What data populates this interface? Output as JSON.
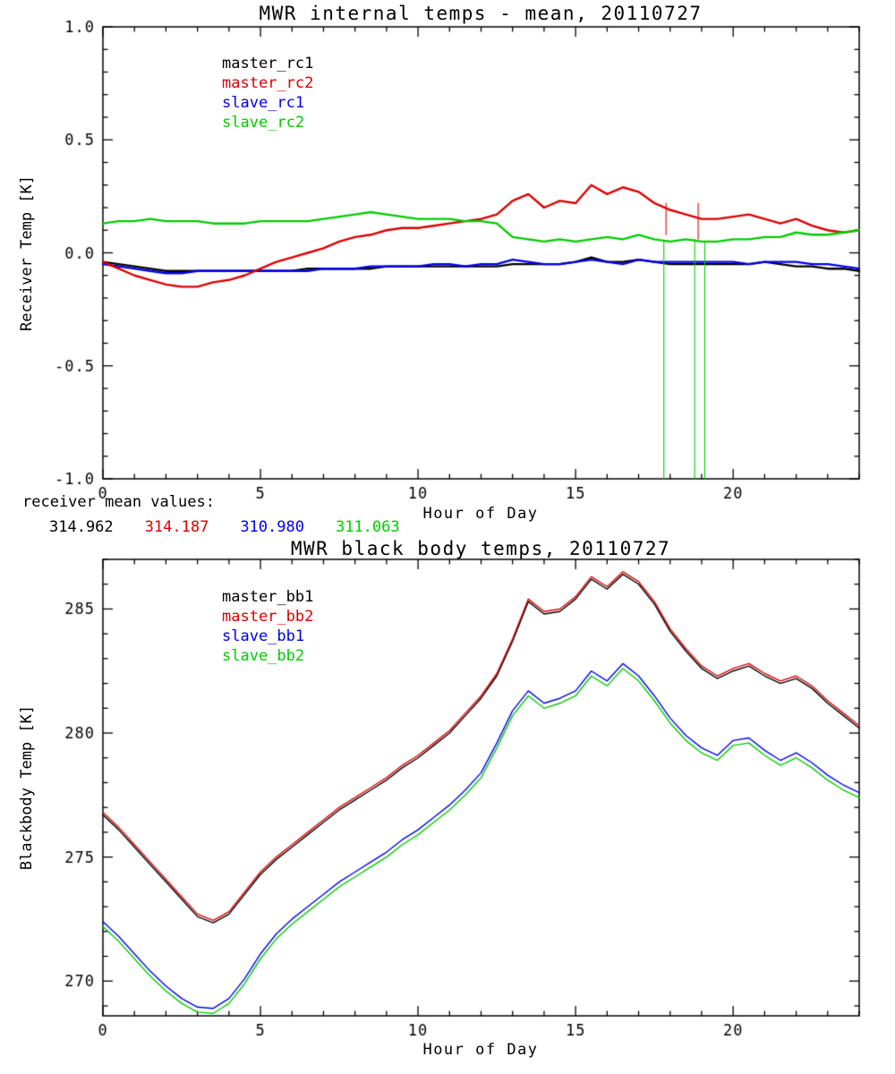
{
  "figure": {
    "background": "#ffffff"
  },
  "receiver_means": {
    "label": "receiver mean values:",
    "values": [
      {
        "text": "314.962",
        "color": "#000000"
      },
      {
        "text": "314.187",
        "color": "#dd0000"
      },
      {
        "text": "310.980",
        "color": "#0000ee"
      },
      {
        "text": "311.063",
        "color": "#00cc00"
      }
    ]
  },
  "chart_data": [
    {
      "type": "line",
      "title": "MWR internal temps - mean, 20110727",
      "xlabel": "Hour of Day",
      "ylabel": "Receiver Temp [K]",
      "xlim": [
        0,
        24
      ],
      "ylim": [
        -1.0,
        1.0
      ],
      "grid": false,
      "legend_position": "upper-left-inside",
      "xticks": {
        "values": [
          0,
          5,
          10,
          15,
          20
        ],
        "labels": [
          "0",
          "5",
          "10",
          "15",
          "20"
        ],
        "minor_step": 1
      },
      "yticks": {
        "values": [
          -1.0,
          -0.5,
          0.0,
          0.5,
          1.0
        ],
        "labels": [
          "-1.0",
          "-0.5",
          "0.0",
          "0.5",
          "1.0"
        ],
        "minor_step": 0.1
      },
      "x": [
        0,
        0.5,
        1,
        1.5,
        2,
        2.5,
        3,
        3.5,
        4,
        4.5,
        5,
        5.5,
        6,
        6.5,
        7,
        7.5,
        8,
        8.5,
        9,
        9.5,
        10,
        10.5,
        11,
        11.5,
        12,
        12.5,
        13,
        13.5,
        14,
        14.5,
        15,
        15.5,
        16,
        16.5,
        17,
        17.5,
        18,
        18.5,
        19,
        19.5,
        20,
        20.5,
        21,
        21.5,
        22,
        22.5,
        23,
        23.5,
        24
      ],
      "series": [
        {
          "name": "master_rc1",
          "color": "#000000",
          "z": 1,
          "values": [
            -0.04,
            -0.05,
            -0.06,
            -0.07,
            -0.08,
            -0.08,
            -0.08,
            -0.08,
            -0.08,
            -0.08,
            -0.08,
            -0.08,
            -0.08,
            -0.07,
            -0.07,
            -0.07,
            -0.07,
            -0.07,
            -0.06,
            -0.06,
            -0.06,
            -0.06,
            -0.06,
            -0.06,
            -0.06,
            -0.06,
            -0.05,
            -0.05,
            -0.05,
            -0.05,
            -0.04,
            -0.02,
            -0.04,
            -0.04,
            -0.03,
            -0.04,
            -0.05,
            -0.05,
            -0.05,
            -0.05,
            -0.05,
            -0.05,
            -0.04,
            -0.05,
            -0.06,
            -0.06,
            -0.07,
            -0.07,
            -0.08
          ]
        },
        {
          "name": "master_rc2",
          "color": "#dd0000",
          "z": 3,
          "values": [
            -0.04,
            -0.07,
            -0.1,
            -0.12,
            -0.14,
            -0.15,
            -0.15,
            -0.13,
            -0.12,
            -0.1,
            -0.07,
            -0.04,
            -0.02,
            0.0,
            0.02,
            0.05,
            0.07,
            0.08,
            0.1,
            0.11,
            0.11,
            0.12,
            0.13,
            0.14,
            0.15,
            0.17,
            0.23,
            0.26,
            0.2,
            0.23,
            0.22,
            0.3,
            0.26,
            0.29,
            0.27,
            0.22,
            0.19,
            0.17,
            0.15,
            0.15,
            0.16,
            0.17,
            0.15,
            0.13,
            0.15,
            0.12,
            0.1,
            0.09,
            0.1
          ]
        },
        {
          "name": "slave_rc1",
          "color": "#0000ee",
          "z": 2,
          "values": [
            -0.05,
            -0.06,
            -0.07,
            -0.08,
            -0.09,
            -0.09,
            -0.08,
            -0.08,
            -0.08,
            -0.08,
            -0.08,
            -0.08,
            -0.08,
            -0.08,
            -0.07,
            -0.07,
            -0.07,
            -0.06,
            -0.06,
            -0.06,
            -0.06,
            -0.05,
            -0.05,
            -0.06,
            -0.05,
            -0.05,
            -0.03,
            -0.04,
            -0.05,
            -0.05,
            -0.04,
            -0.03,
            -0.04,
            -0.05,
            -0.03,
            -0.04,
            -0.04,
            -0.04,
            -0.04,
            -0.04,
            -0.04,
            -0.05,
            -0.04,
            -0.04,
            -0.04,
            -0.05,
            -0.05,
            -0.06,
            -0.07
          ]
        },
        {
          "name": "slave_rc2",
          "color": "#00cc00",
          "z": 4,
          "values": [
            0.13,
            0.14,
            0.14,
            0.15,
            0.14,
            0.14,
            0.14,
            0.13,
            0.13,
            0.13,
            0.14,
            0.14,
            0.14,
            0.14,
            0.15,
            0.16,
            0.17,
            0.18,
            0.17,
            0.16,
            0.15,
            0.15,
            0.15,
            0.14,
            0.14,
            0.13,
            0.07,
            0.06,
            0.05,
            0.06,
            0.05,
            0.06,
            0.07,
            0.06,
            0.08,
            0.06,
            0.05,
            0.06,
            0.05,
            0.05,
            0.06,
            0.06,
            0.07,
            0.07,
            0.09,
            0.08,
            0.08,
            0.09,
            0.1
          ]
        }
      ],
      "spikes": [
        {
          "color": "#00cc00",
          "x": 17.8,
          "y_from": 0.05,
          "y_to": -1.0
        },
        {
          "color": "#00cc00",
          "x": 18.78,
          "y_from": 0.06,
          "y_to": -1.0
        },
        {
          "color": "#00cc00",
          "x": 19.1,
          "y_from": 0.05,
          "y_to": -1.0
        },
        {
          "color": "#dd0000",
          "x": 17.87,
          "y_from": 0.22,
          "y_to": 0.08
        },
        {
          "color": "#dd0000",
          "x": 18.89,
          "y_from": 0.22,
          "y_to": 0.06
        }
      ]
    },
    {
      "type": "line",
      "title": "MWR black body temps, 20110727",
      "xlabel": "Hour of Day",
      "ylabel": "Blackbody Temp [K]",
      "xlim": [
        0,
        24
      ],
      "ylim": [
        268.6,
        287.0
      ],
      "grid": false,
      "legend_position": "upper-left-inside",
      "xticks": {
        "values": [
          0,
          5,
          10,
          15,
          20
        ],
        "labels": [
          "0",
          "5",
          "10",
          "15",
          "20"
        ],
        "minor_step": 1
      },
      "yticks": {
        "values": [
          270,
          275,
          280,
          285
        ],
        "labels": [
          "270",
          "275",
          "280",
          "285"
        ],
        "minor_step": 1
      },
      "x": [
        0,
        0.5,
        1,
        1.5,
        2,
        2.5,
        3,
        3.5,
        4,
        4.5,
        5,
        5.5,
        6,
        6.5,
        7,
        7.5,
        8,
        8.5,
        9,
        9.5,
        10,
        10.5,
        11,
        11.5,
        12,
        12.5,
        13,
        13.5,
        14,
        14.5,
        15,
        15.5,
        16,
        16.5,
        17,
        17.5,
        18,
        18.5,
        19,
        19.5,
        20,
        20.5,
        21,
        21.5,
        22,
        22.5,
        23,
        23.5,
        24
      ],
      "series": [
        {
          "name": "master_bb1",
          "color": "#000000",
          "z": 1,
          "values": [
            276.7,
            276.1,
            275.4,
            274.7,
            274.0,
            273.3,
            272.6,
            272.35,
            272.7,
            273.5,
            274.3,
            274.9,
            275.4,
            275.9,
            276.4,
            276.9,
            277.3,
            277.7,
            278.1,
            278.6,
            279.0,
            279.5,
            280.0,
            280.7,
            281.4,
            282.3,
            283.7,
            285.3,
            284.8,
            284.9,
            285.4,
            286.2,
            285.8,
            286.4,
            286.0,
            285.2,
            284.1,
            283.3,
            282.6,
            282.2,
            282.5,
            282.7,
            282.3,
            282.0,
            282.2,
            281.8,
            281.2,
            280.7,
            280.2
          ]
        },
        {
          "name": "master_bb2",
          "color": "#dd0000",
          "z": 2,
          "values": [
            276.8,
            276.2,
            275.5,
            274.8,
            274.1,
            273.4,
            272.7,
            272.45,
            272.8,
            273.6,
            274.4,
            275.0,
            275.5,
            276.0,
            276.5,
            277.0,
            277.4,
            277.8,
            278.2,
            278.7,
            279.1,
            279.6,
            280.1,
            280.8,
            281.5,
            282.4,
            283.8,
            285.4,
            284.9,
            285.0,
            285.5,
            286.3,
            285.9,
            286.5,
            286.1,
            285.3,
            284.2,
            283.4,
            282.7,
            282.3,
            282.6,
            282.8,
            282.4,
            282.1,
            282.3,
            281.9,
            281.3,
            280.8,
            280.3
          ]
        },
        {
          "name": "slave_bb1",
          "color": "#0000ee",
          "z": 3,
          "values": [
            272.4,
            271.8,
            271.1,
            270.4,
            269.8,
            269.3,
            268.95,
            268.9,
            269.3,
            270.1,
            271.1,
            271.9,
            272.5,
            273.0,
            273.5,
            274.0,
            274.4,
            274.8,
            275.2,
            275.7,
            276.1,
            276.6,
            277.1,
            277.7,
            278.4,
            279.6,
            280.9,
            281.7,
            281.2,
            281.4,
            281.7,
            282.5,
            282.1,
            282.8,
            282.3,
            281.5,
            280.6,
            279.9,
            279.4,
            279.1,
            279.7,
            279.8,
            279.3,
            278.9,
            279.2,
            278.8,
            278.3,
            277.9,
            277.6
          ]
        },
        {
          "name": "slave_bb2",
          "color": "#00cc00",
          "z": 4,
          "values": [
            272.2,
            271.6,
            270.9,
            270.2,
            269.6,
            269.1,
            268.75,
            268.7,
            269.1,
            269.9,
            270.9,
            271.7,
            272.3,
            272.8,
            273.3,
            273.8,
            274.2,
            274.6,
            275.0,
            275.5,
            275.9,
            276.4,
            276.9,
            277.5,
            278.2,
            279.4,
            280.7,
            281.5,
            281.0,
            281.2,
            281.5,
            282.3,
            281.9,
            282.6,
            282.1,
            281.3,
            280.4,
            279.7,
            279.2,
            278.9,
            279.5,
            279.6,
            279.1,
            278.7,
            279.0,
            278.6,
            278.1,
            277.7,
            277.4
          ]
        }
      ],
      "spikes": []
    }
  ]
}
